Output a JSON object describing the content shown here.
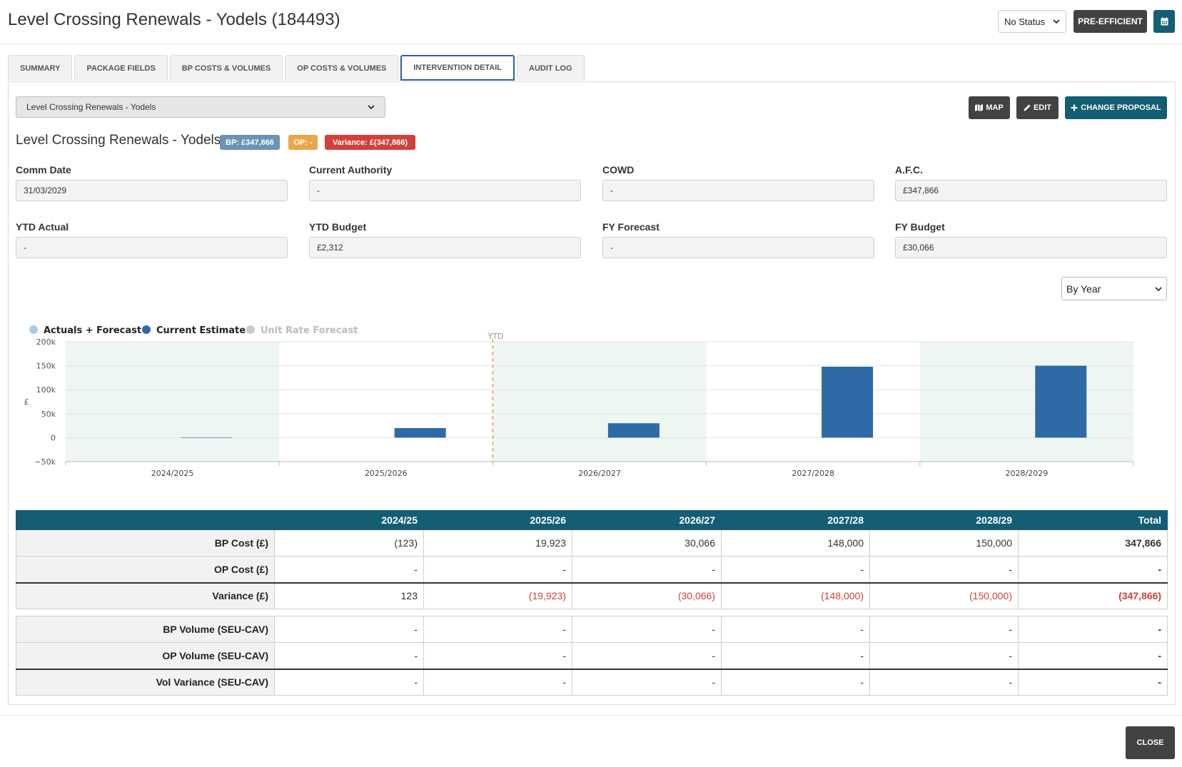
{
  "header": {
    "title": "Level Crossing Renewals - Yodels (184493)",
    "status_value": "No Status",
    "pre_efficient_label": "PRE-EFFICIENT",
    "calendar_icon": "calendar-icon"
  },
  "tabs": [
    {
      "label": "SUMMARY"
    },
    {
      "label": "PACKAGE FIELDS"
    },
    {
      "label": "BP COSTS & VOLUMES"
    },
    {
      "label": "OP COSTS & VOLUMES"
    },
    {
      "label": "INTERVENTION DETAIL"
    },
    {
      "label": "AUDIT LOG"
    }
  ],
  "active_tab": "INTERVENTION DETAIL",
  "intervention": {
    "select_value": "Level Crossing Renewals - Yodels",
    "title": "Level Crossing Renewals - Yodels",
    "badge_bp": "BP: £347,866",
    "badge_op": "OP: -",
    "badge_variance": "Variance: £(347,866)"
  },
  "actions": {
    "map": "MAP",
    "edit": "EDIT",
    "change_proposal": "CHANGE PROPOSAL"
  },
  "fields": [
    {
      "label": "Comm Date",
      "value": "31/03/2029"
    },
    {
      "label": "Current Authority",
      "value": "-"
    },
    {
      "label": "COWD",
      "value": "-"
    },
    {
      "label": "A.F.C.",
      "value": "£347,866"
    },
    {
      "label": "YTD Actual",
      "value": "-"
    },
    {
      "label": "YTD Budget",
      "value": "£2,312"
    },
    {
      "label": "FY Forecast",
      "value": "-"
    },
    {
      "label": "FY Budget",
      "value": "£30,066"
    }
  ],
  "period_select": "By Year",
  "chart_data": {
    "type": "bar",
    "categories": [
      "2024/2025",
      "2025/2026",
      "2026/2027",
      "2027/2028",
      "2028/2029"
    ],
    "series": [
      {
        "name": "Actuals + Forecast",
        "values": [
          0,
          0,
          0,
          0,
          0
        ],
        "color": "#a9cbe4"
      },
      {
        "name": "Current Estimate",
        "values": [
          -123,
          19923,
          30066,
          148000,
          150000
        ],
        "color": "#2d6aa6"
      },
      {
        "name": "Unit Rate Forecast",
        "values": [
          0,
          0,
          0,
          0,
          0
        ],
        "color": "#cccccc"
      }
    ],
    "ylabel": "£",
    "yticks": [
      "200k",
      "150k",
      "100k",
      "50k",
      "0",
      "−50k"
    ],
    "ylim": [
      -50000,
      200000
    ],
    "marker_label": "YTD",
    "legend_position": "top-left"
  },
  "cost_table": {
    "headers": [
      "",
      "2024/25",
      "2025/26",
      "2026/27",
      "2027/28",
      "2028/29",
      "Total"
    ],
    "rows": [
      {
        "label": "BP Cost (£)",
        "cells": [
          "(123)",
          "19,923",
          "30,066",
          "148,000",
          "150,000",
          "347,866"
        ]
      },
      {
        "label": "OP Cost (£)",
        "cells": [
          "-",
          "-",
          "-",
          "-",
          "-",
          "-"
        ]
      },
      {
        "label": "Variance (£)",
        "cells": [
          "123",
          "(19,923)",
          "(30,066)",
          "(148,000)",
          "(150,000)",
          "(347,866)"
        ]
      }
    ]
  },
  "volume_table": {
    "rows": [
      {
        "label": "BP Volume (SEU-CAV)",
        "cells": [
          "-",
          "-",
          "-",
          "-",
          "-",
          "-"
        ]
      },
      {
        "label": "OP Volume (SEU-CAV)",
        "cells": [
          "-",
          "-",
          "-",
          "-",
          "-",
          "-"
        ]
      },
      {
        "label": "Vol Variance (SEU-CAV)",
        "cells": [
          "-",
          "-",
          "-",
          "-",
          "-",
          "-"
        ]
      }
    ]
  },
  "footer": {
    "close_label": "CLOSE"
  }
}
